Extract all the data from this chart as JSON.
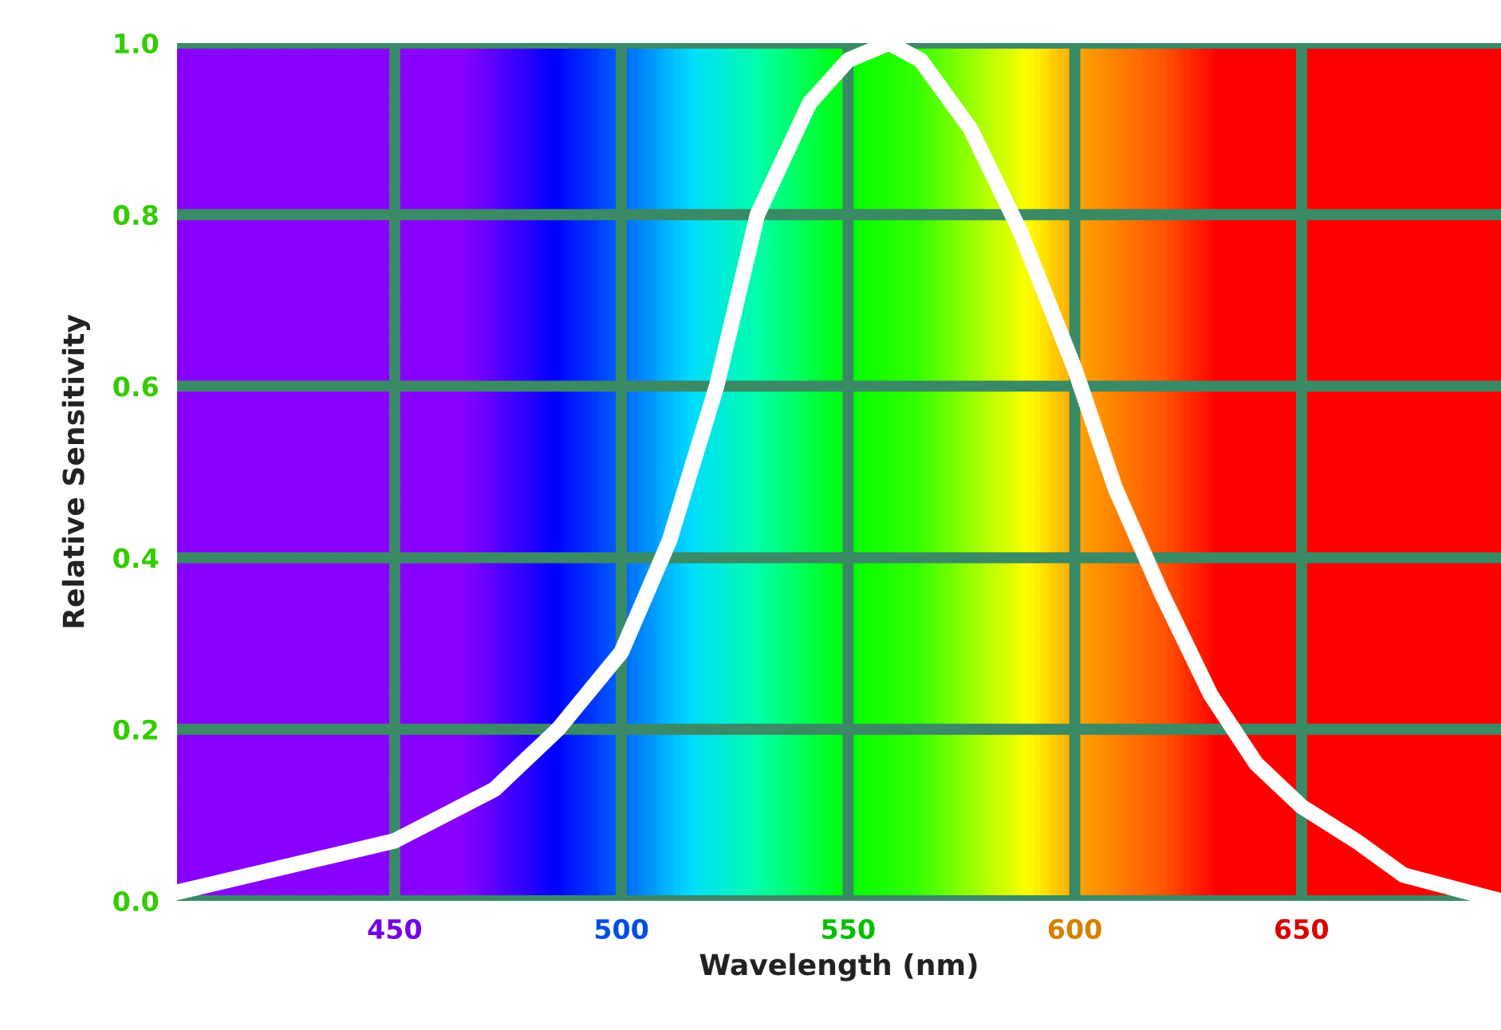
{
  "chart_data": {
    "type": "line",
    "xlabel": "Wavelength (nm)",
    "ylabel": "Relative Sensitivity",
    "xlim": [
      402,
      694
    ],
    "ylim": [
      0,
      1.0
    ],
    "xticks": [
      450,
      500,
      550,
      600,
      650
    ],
    "yticks": [
      {
        "value": 0,
        "label": "0.0"
      },
      {
        "value": 0.2,
        "label": "0.2"
      },
      {
        "value": 0.4,
        "label": "0.4"
      },
      {
        "value": 0.6,
        "label": "0.6"
      },
      {
        "value": 0.8,
        "label": "0.8"
      },
      {
        "value": 1.0,
        "label": "1.0"
      }
    ],
    "grid": true,
    "marker": "none",
    "line_style": "solid",
    "series": [
      {
        "color": "#ffffff",
        "x": [
          402,
          426,
          450,
          472,
          486,
          500,
          510.6,
          521,
          530,
          541.5,
          550,
          559,
          566,
          577,
          588,
          600,
          609,
          619,
          630,
          640,
          650,
          662,
          672.5,
          694
        ],
        "values": [
          0.01,
          0.04,
          0.07,
          0.13,
          0.2,
          0.29,
          0.42,
          0.6,
          0.8,
          0.93,
          0.98,
          1.0,
          0.98,
          0.9,
          0.78,
          0.62,
          0.48,
          0.36,
          0.24,
          0.16,
          0.11,
          0.07,
          0.03,
          0.0
        ]
      }
    ]
  }
}
